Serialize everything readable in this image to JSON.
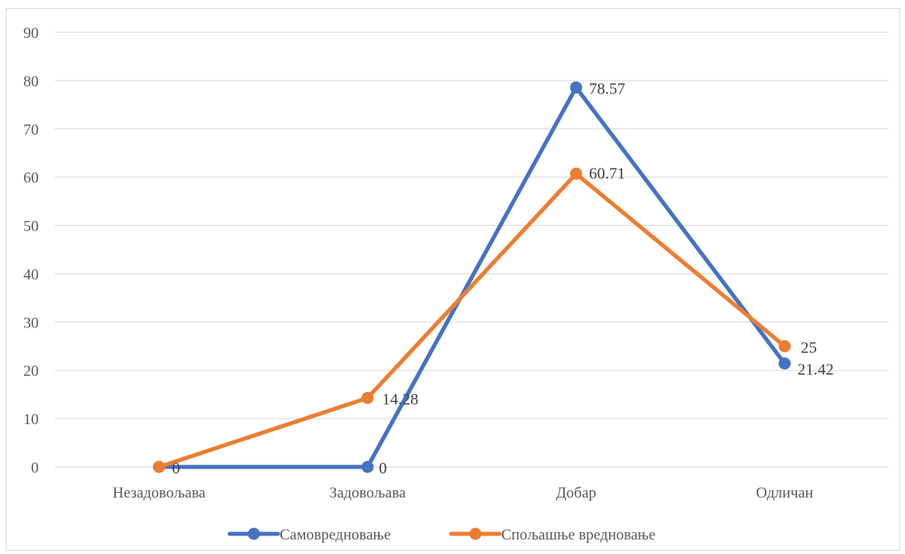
{
  "chart_data": {
    "type": "line",
    "title": "",
    "xlabel": "",
    "ylabel": "",
    "categories": [
      "Незадовољава",
      "Задовољава",
      "Добар",
      "Одличан"
    ],
    "ylim": [
      0,
      90
    ],
    "yticks": [
      0,
      10,
      20,
      30,
      40,
      50,
      60,
      70,
      80,
      90
    ],
    "grid": true,
    "legend_position": "bottom",
    "series": [
      {
        "name": "Самовредновање",
        "color": "#4472c4",
        "values": [
          0,
          0,
          78.57,
          21.42
        ],
        "labels": [
          "",
          "0",
          "78.57",
          "21.42"
        ]
      },
      {
        "name": "Спољашње вредновање",
        "color": "#ed7d31",
        "values": [
          0,
          14.28,
          60.71,
          25
        ],
        "labels": [
          "0",
          "14.28",
          "60.71",
          "25"
        ]
      }
    ]
  }
}
